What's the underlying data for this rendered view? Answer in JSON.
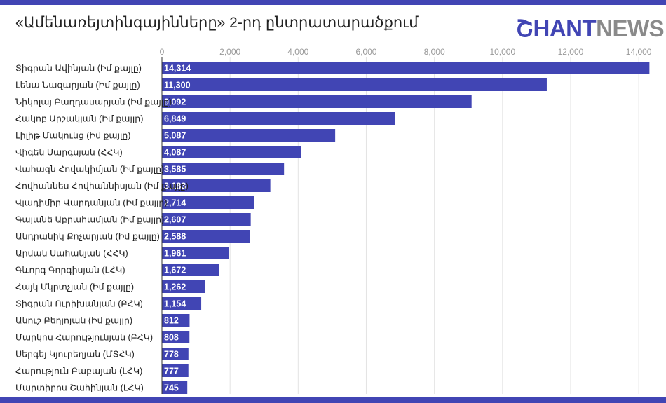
{
  "title": "«Ամենառեյտինգայինները» 2-րդ ընտրատարածքում",
  "logo": {
    "part1": "ՇHANT",
    "part2": "NEWS"
  },
  "colors": {
    "bar": "#4145b4",
    "band": "#4145b4",
    "grid": "#e3e3e3"
  },
  "chart_data": {
    "type": "bar",
    "orientation": "horizontal",
    "categories": [
      "Տիգրան Ավինյան (Իմ քայլը)",
      "Լենա Նազարյան (Իմ քայլը)",
      "Նիկոլայ Բաղդասարյան (Իմ քայլը)",
      "Հակոբ Արշակյան (Իմ քայլը)",
      "Լիլիթ Մակունց (Իմ քայլը)",
      "Վիգեն Սարգսյան (ՀՀԿ)",
      "Վահագն Հովակիմյան (Իմ քայլը)",
      "Հովհաննես Հովհաննիսյան (Իմ քայլը)",
      "Վլադիմիր Վարդանյան (Իմ քայլը)",
      "Գայանե Աբրահամյան (Իմ քայլը)",
      "Անդրանիկ Քոչարյան (Իմ քայլը)",
      "Արման Սահակյան (ՀՀԿ)",
      "Գևորգ Գորգիսյան (ԼՀԿ)",
      "Հայկ Մկրտչյան (Իմ քայլը)",
      "Տիգրան Ուրիխանյան (ԲՀԿ)",
      "Անուշ Բեղլոյան (Իմ քայլը)",
      "Մարկոս Հարությունյան (ԲՀԿ)",
      "Սերգեյ Կյուրեղյան (ՄՏՀԿ)",
      "Հարություն Բաբայան (ԼՀԿ)",
      "Մարտիրոս Շահինյան (ԼՀԿ)"
    ],
    "values": [
      14314,
      11300,
      9092,
      6849,
      5087,
      4087,
      3585,
      3183,
      2714,
      2607,
      2588,
      1961,
      1672,
      1262,
      1154,
      812,
      808,
      778,
      777,
      745
    ],
    "value_labels": [
      "14,314",
      "11,300",
      "9,092",
      "6,849",
      "5,087",
      "4,087",
      "3,585",
      "3,183",
      "2,714",
      "2,607",
      "2,588",
      "1,961",
      "1,672",
      "1,262",
      "1,154",
      "812",
      "808",
      "778",
      "777",
      "745"
    ],
    "x_ticks": [
      0,
      2000,
      4000,
      6000,
      8000,
      10000,
      12000,
      14000
    ],
    "x_tick_labels": [
      "0",
      "2,000",
      "4,000",
      "6,000",
      "8,000",
      "10,000",
      "12,000",
      "14,000"
    ],
    "xlim": [
      0,
      14600
    ],
    "x_axis_position": "top",
    "grid": true,
    "legend": "none"
  }
}
